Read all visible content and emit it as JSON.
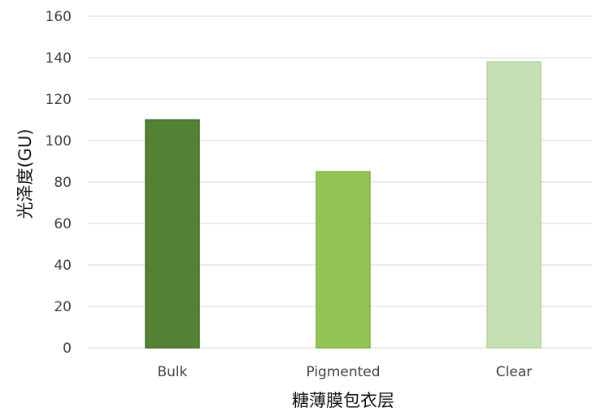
{
  "chart_data": {
    "type": "bar",
    "title": "",
    "xlabel": "糖薄膜包衣层",
    "ylabel": "光泽度(GU)",
    "categories": [
      "Bulk",
      "Pigmented",
      "Clear"
    ],
    "values": [
      110,
      85,
      138
    ],
    "ylim": [
      0,
      160
    ],
    "yticks": [
      0,
      20,
      40,
      60,
      80,
      100,
      120,
      140,
      160
    ],
    "bar_colors": [
      "#548235",
      "#92c353",
      "#c5e0b4"
    ],
    "bar_edge_colors": [
      "#3f6d25",
      "#7fb040",
      "#b3d59a"
    ],
    "grid": true,
    "grid_color": "#d9d9d9",
    "legend": "none"
  }
}
